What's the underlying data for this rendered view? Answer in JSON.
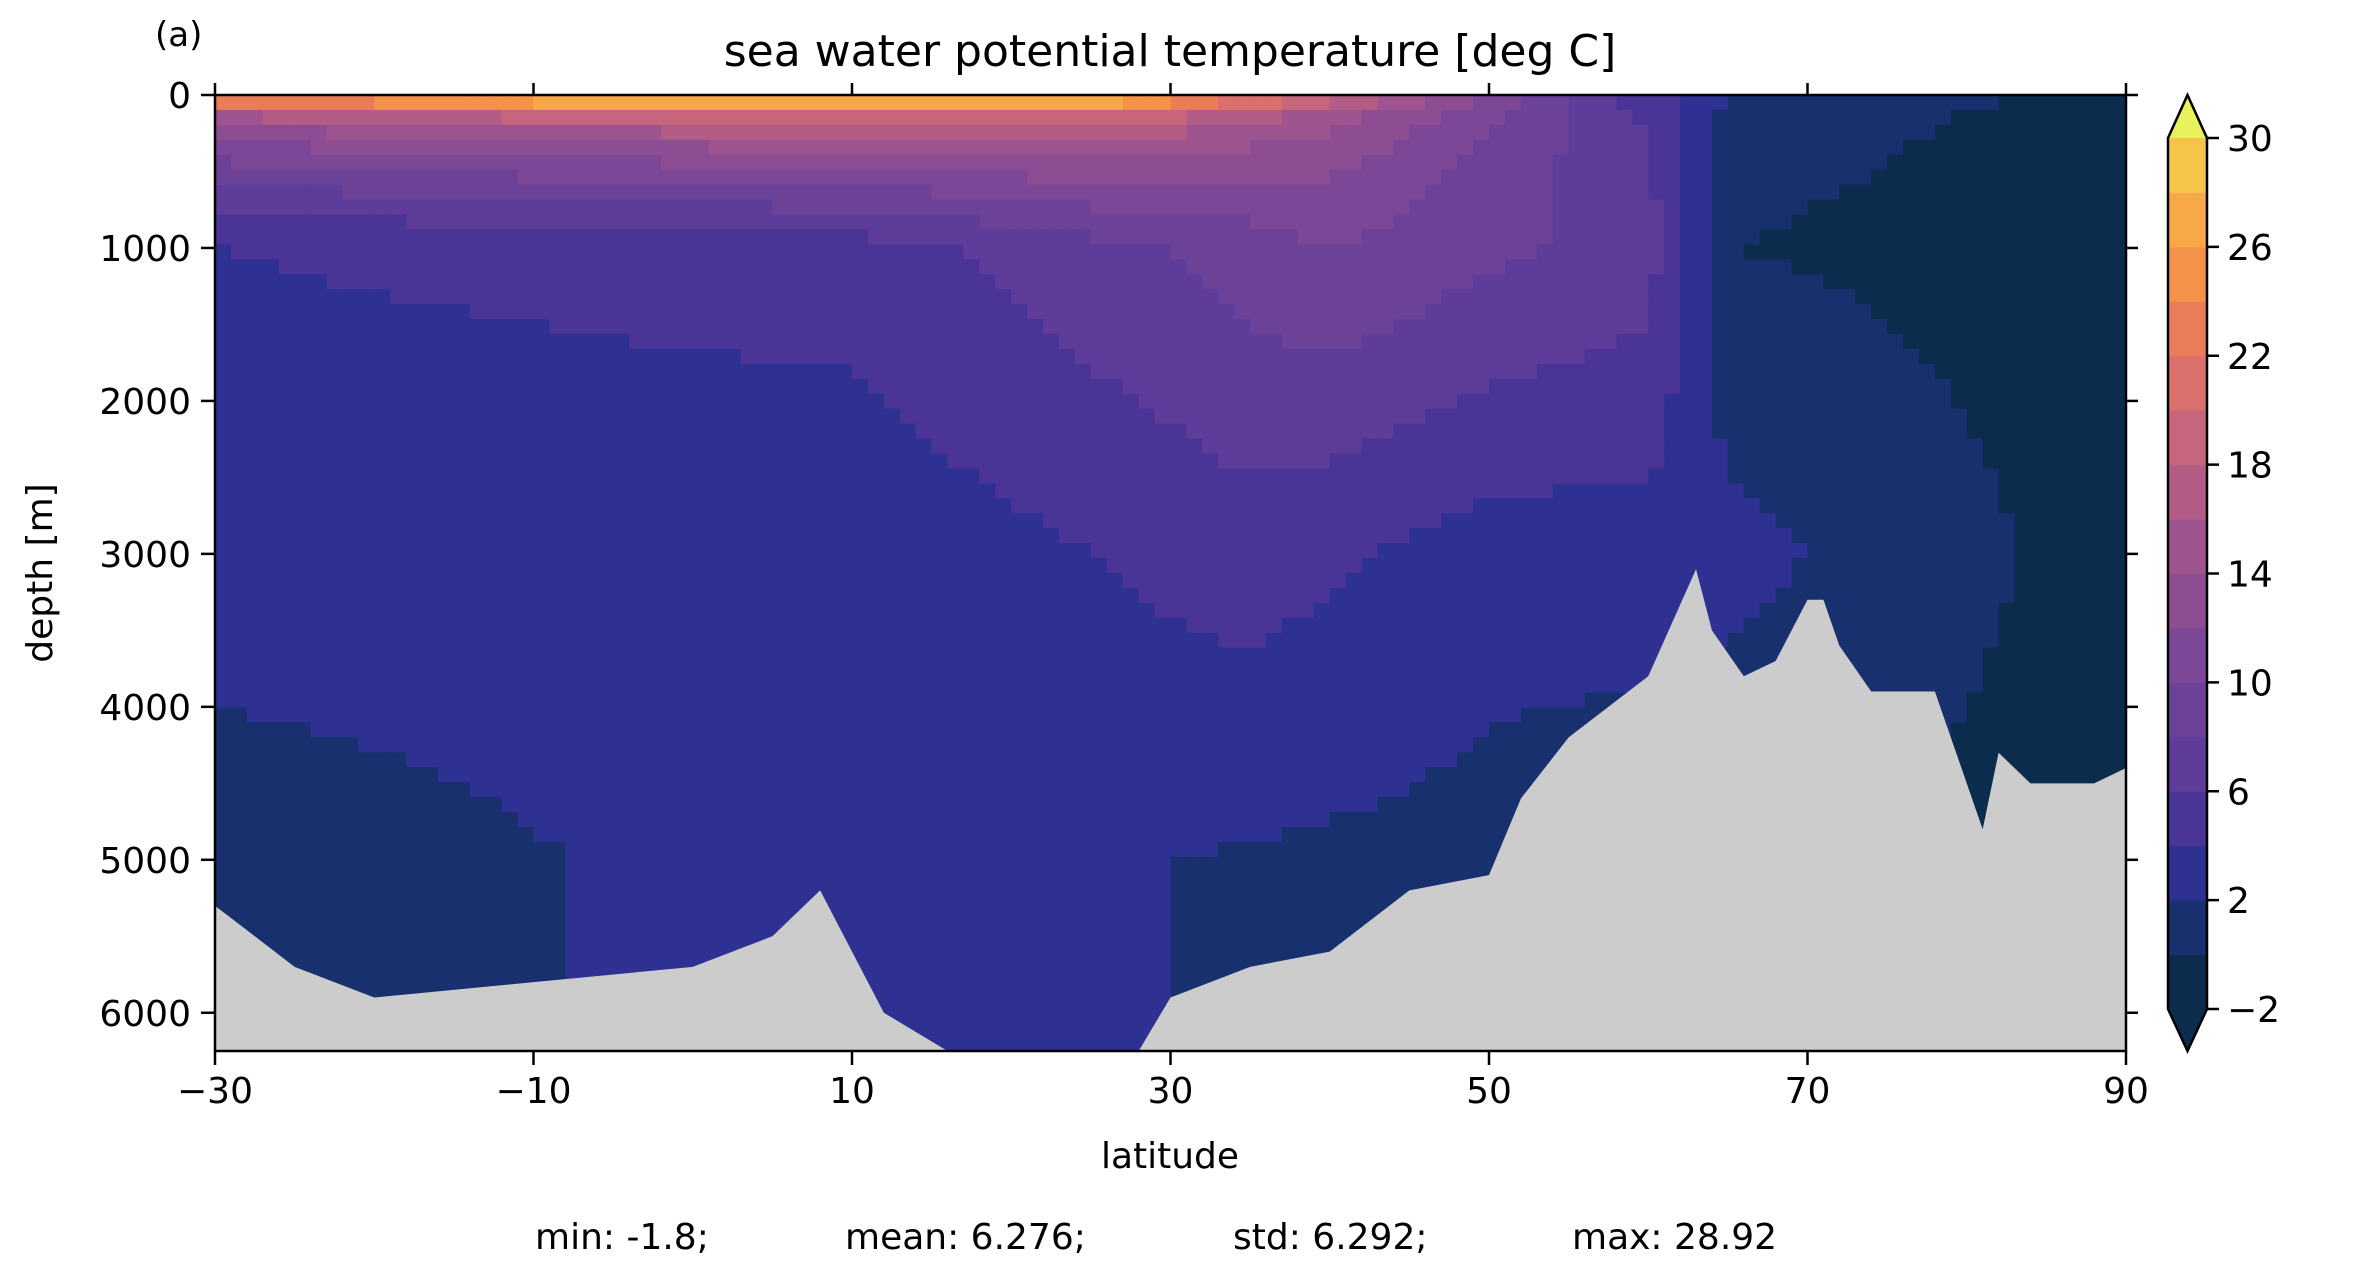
{
  "chart_data": {
    "type": "heatmap",
    "panel_label": "(a)",
    "title": "sea water potential temperature [deg C]",
    "xlabel": "latitude",
    "ylabel": "depth [m]",
    "xlim": [
      -30,
      90
    ],
    "ylim": [
      6250,
      0
    ],
    "x_ticks": [
      -30,
      -10,
      10,
      30,
      50,
      70,
      90
    ],
    "x_tick_labels": [
      "−30",
      "−10",
      "10",
      "30",
      "50",
      "70",
      "90"
    ],
    "y_ticks": [
      0,
      1000,
      2000,
      3000,
      4000,
      5000,
      6000
    ],
    "y_tick_labels": [
      "0",
      "1000",
      "2000",
      "3000",
      "4000",
      "5000",
      "6000"
    ],
    "colorbar": {
      "levels": [
        -2,
        0,
        2,
        4,
        6,
        8,
        10,
        12,
        14,
        16,
        18,
        20,
        22,
        24,
        26,
        28,
        30
      ],
      "tick_values": [
        -2,
        2,
        6,
        10,
        14,
        18,
        22,
        26,
        30
      ],
      "tick_labels": [
        "−2",
        "2",
        "6",
        "10",
        "14",
        "18",
        "22",
        "26",
        "30"
      ],
      "colors": [
        "#0b2c4d",
        "#18306e",
        "#2e3192",
        "#4a3496",
        "#5d3c9a",
        "#6c4299",
        "#7b4796",
        "#8c4d93",
        "#9e548e",
        "#b35d86",
        "#c7657c",
        "#da6f6b",
        "#ea7d57",
        "#f4924a",
        "#f8a847",
        "#f6c449",
        "#efe25a"
      ],
      "under_color": "#0b2c4d",
      "over_color": "#e8f25c",
      "extend": "both"
    },
    "land_color": "#cccccc",
    "depth_sections": [
      {
        "range": "surface-100 m",
        "latitudes": [
          -30,
          -10,
          10,
          25,
          40,
          55,
          65,
          90
        ],
        "temperature": [
          22,
          26,
          28,
          27,
          18,
          8,
          2,
          -1
        ]
      },
      {
        "range": "1000 m",
        "latitudes": [
          -30,
          10,
          30,
          40,
          60,
          65,
          90
        ],
        "temperature": [
          4,
          5,
          8,
          10,
          7,
          0,
          -1
        ]
      },
      {
        "range": "3000 m",
        "latitudes": [
          -30,
          10,
          35,
          50,
          63,
          90
        ],
        "temperature": [
          2.5,
          2.5,
          5,
          3,
          3,
          -1
        ]
      },
      {
        "range": "5000 m",
        "latitudes": [
          -30,
          15,
          45,
          90
        ],
        "temperature": [
          1.5,
          2.5,
          1.5,
          -1
        ]
      }
    ],
    "bottom_topography": {
      "latitude": [
        -30,
        -25,
        -20,
        -10,
        0,
        5,
        8,
        12,
        16,
        20,
        25,
        28,
        30,
        35,
        40,
        45,
        50,
        52,
        55,
        60,
        63,
        64,
        66,
        68,
        70,
        71,
        72,
        74,
        78,
        81,
        82,
        84,
        86,
        88,
        90
      ],
      "depth": [
        5300,
        5700,
        5900,
        5800,
        5700,
        5500,
        5200,
        6000,
        6250,
        6250,
        6250,
        6250,
        5900,
        5700,
        5600,
        5200,
        5100,
        4600,
        4200,
        3800,
        3100,
        3500,
        3800,
        3700,
        3300,
        3300,
        3600,
        3900,
        3900,
        4800,
        4300,
        4500,
        4500,
        4500,
        4400
      ]
    },
    "stats": {
      "min": "min: -1.8;",
      "mean": "mean: 6.276;",
      "std": "std: 6.292;",
      "max": "max: 28.92"
    }
  }
}
